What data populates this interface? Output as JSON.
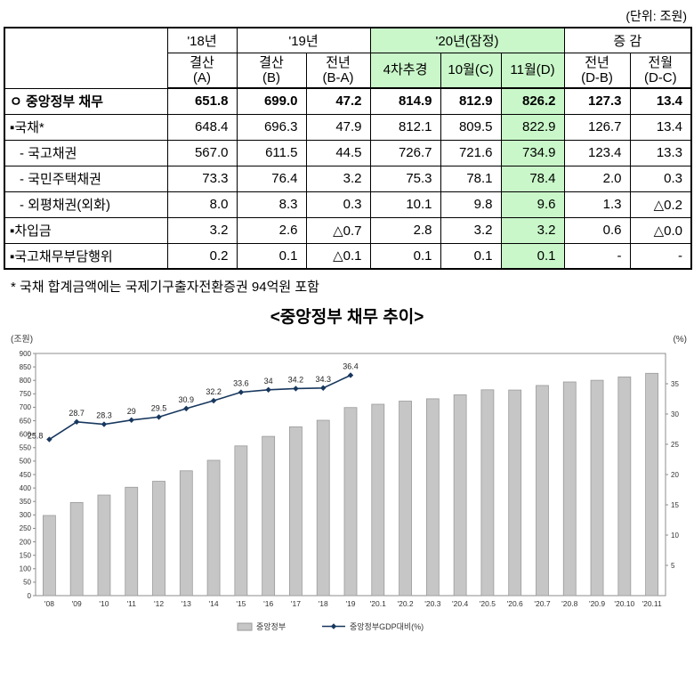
{
  "unit_note": "(단위: 조원)",
  "table": {
    "col_groups": [
      {
        "label": "",
        "span": 1,
        "green": false
      },
      {
        "label": "'18년",
        "span": 1,
        "green": false
      },
      {
        "label": "'19년",
        "span": 2,
        "green": false
      },
      {
        "label": "'20년(잠정)",
        "span": 3,
        "green": true
      },
      {
        "label": "증 감",
        "span": 2,
        "green": false
      }
    ],
    "sub_headers": [
      {
        "label": "결산\n(A)",
        "green": false
      },
      {
        "label": "결산\n(B)",
        "green": false
      },
      {
        "label": "전년\n(B-A)",
        "green": false
      },
      {
        "label": "4차추경",
        "green": true
      },
      {
        "label": "10월(C)",
        "green": true
      },
      {
        "label": "11월(D)",
        "green": true
      },
      {
        "label": "전년\n(D-B)",
        "green": false
      },
      {
        "label": "전월\n(D-C)",
        "green": false
      }
    ],
    "highlight_col": 5,
    "rows": [
      {
        "label": "ㅇ 중앙정부 채무",
        "bold": true,
        "indent": false,
        "values": [
          "651.8",
          "699.0",
          "47.2",
          "814.9",
          "812.9",
          "826.2",
          "127.3",
          "13.4"
        ]
      },
      {
        "label": "▪국채*",
        "bold": false,
        "indent": false,
        "values": [
          "648.4",
          "696.3",
          "47.9",
          "812.1",
          "809.5",
          "822.9",
          "126.7",
          "13.4"
        ]
      },
      {
        "label": "- 국고채권",
        "bold": false,
        "indent": true,
        "values": [
          "567.0",
          "611.5",
          "44.5",
          "726.7",
          "721.6",
          "734.9",
          "123.4",
          "13.3"
        ]
      },
      {
        "label": "- 국민주택채권",
        "bold": false,
        "indent": true,
        "values": [
          "73.3",
          "76.4",
          "3.2",
          "75.3",
          "78.1",
          "78.4",
          "2.0",
          "0.3"
        ]
      },
      {
        "label": "- 외평채권(외화)",
        "bold": false,
        "indent": true,
        "values": [
          "8.0",
          "8.3",
          "0.3",
          "10.1",
          "9.8",
          "9.6",
          "1.3",
          "△0.2"
        ]
      },
      {
        "label": "▪차입금",
        "bold": false,
        "indent": false,
        "values": [
          "3.2",
          "2.6",
          "△0.7",
          "2.8",
          "3.2",
          "3.2",
          "0.6",
          "△0.0"
        ]
      },
      {
        "label": "▪국고채무부담행위",
        "bold": false,
        "indent": false,
        "values": [
          "0.2",
          "0.1",
          "△0.1",
          "0.1",
          "0.1",
          "0.1",
          "-",
          "-"
        ]
      }
    ]
  },
  "footnote": "* 국채 합계금액에는 국제기구출자전환증권 94억원 포함",
  "chart_title": "<중앙정부 채무 추이>",
  "colors": {
    "highlight_green": "#c9f7c9",
    "bar_fill": "#c6c6c6",
    "bar_stroke": "#9a9a9a",
    "line_navy": "#17375e"
  },
  "chart_data": {
    "type": "bar",
    "title": "<중앙정부 채무 추이>",
    "left_axis_label": "(조원)",
    "right_axis_label": "(%)",
    "left_ylim": [
      0,
      900
    ],
    "left_tick_step": 50,
    "right_ylim": [
      0,
      40
    ],
    "right_ticks": [
      5,
      10,
      15,
      20,
      25,
      30,
      35
    ],
    "categories": [
      "'08",
      "'09",
      "'10",
      "'11",
      "'12",
      "'13",
      "'14",
      "'15",
      "'16",
      "'17",
      "'18",
      "'19",
      "'20.1",
      "'20.2",
      "'20.3",
      "'20.4",
      "'20.5",
      "'20.6",
      "'20.7",
      "'20.8",
      "'20.9",
      "'20.10",
      "'20.11"
    ],
    "series": [
      {
        "name": "중앙정부",
        "type": "bar",
        "values": [
          297.9,
          346.1,
          373.8,
          402.8,
          425.1,
          464.0,
          503.0,
          556.5,
          591.9,
          627.4,
          651.8,
          699.0,
          711.3,
          722.9,
          731.6,
          746.3,
          764.9,
          764.1,
          781.0,
          794.1,
          800.3,
          812.9,
          826.2
        ]
      },
      {
        "name": "중앙정부GDP대비(%)",
        "type": "line",
        "axis": "right",
        "values": [
          25.8,
          28.7,
          28.3,
          29.0,
          29.5,
          30.9,
          32.2,
          33.6,
          34.0,
          34.2,
          34.3,
          36.4
        ],
        "labels": [
          "25.8",
          "28.7",
          "28.3",
          "29",
          "29.5",
          "30.9",
          "32.2",
          "33.6",
          "34",
          "34.2",
          "34.3",
          "36.4"
        ]
      }
    ],
    "legend": [
      "중앙정부",
      "중앙정부GDP대비(%)"
    ],
    "legend_position": "bottom",
    "grid": false
  }
}
